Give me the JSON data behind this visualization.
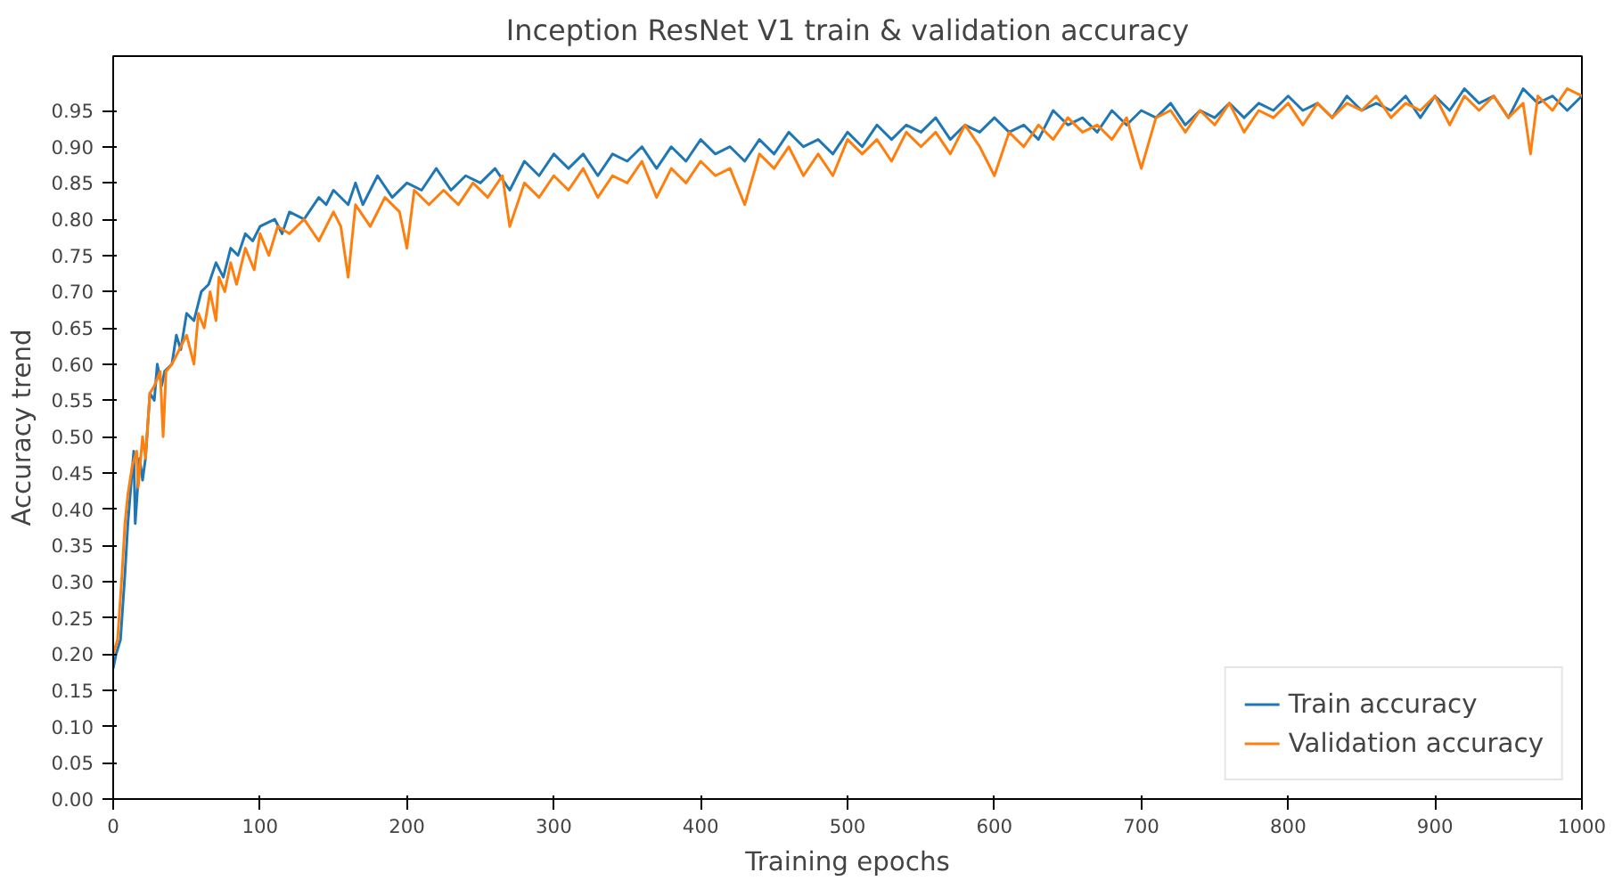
{
  "chart_data": {
    "type": "line",
    "title": "Inception ResNet V1 train & validation accuracy",
    "xlabel": "Training epochs",
    "ylabel": "Accuracy trend",
    "xlim": [
      0,
      1000
    ],
    "ylim": [
      0,
      1.025
    ],
    "xticks": [
      0,
      100,
      200,
      300,
      400,
      500,
      600,
      700,
      800,
      900,
      1000
    ],
    "yticks": [
      {
        "value": 0,
        "label": "0.00"
      },
      {
        "value": 0.05,
        "label": "0.05"
      },
      {
        "value": 0.1,
        "label": "0.10"
      },
      {
        "value": 0.15,
        "label": "0.15"
      },
      {
        "value": 0.2,
        "label": "0.20"
      },
      {
        "value": 0.25,
        "label": "0.25"
      },
      {
        "value": 0.3,
        "label": "0.30"
      },
      {
        "value": 0.35,
        "label": "0.35"
      },
      {
        "value": 0.4,
        "label": "0.40"
      },
      {
        "value": 0.45,
        "label": "0.45"
      },
      {
        "value": 0.5,
        "label": "0.50"
      },
      {
        "value": 0.55,
        "label": "0.55"
      },
      {
        "value": 0.6,
        "label": "0.60"
      },
      {
        "value": 0.65,
        "label": "0.65"
      },
      {
        "value": 0.7,
        "label": "0.70"
      },
      {
        "value": 0.75,
        "label": "0.75"
      },
      {
        "value": 0.8,
        "label": "0.80"
      },
      {
        "value": 0.85,
        "label": "0.85"
      },
      {
        "value": 0.9,
        "label": "0.90"
      },
      {
        "value": 0.95,
        "label": "0.95"
      }
    ],
    "grid": false,
    "legend": "bottom right",
    "series": [
      {
        "name": "Train accuracy",
        "color": "#1f77b4",
        "x": [
          0,
          2,
          5,
          8,
          10,
          12,
          14,
          15,
          18,
          20,
          22,
          25,
          28,
          30,
          33,
          35,
          40,
          43,
          46,
          50,
          55,
          60,
          65,
          70,
          75,
          80,
          85,
          90,
          95,
          100,
          110,
          115,
          120,
          130,
          140,
          145,
          150,
          160,
          165,
          170,
          180,
          190,
          200,
          210,
          220,
          230,
          240,
          250,
          260,
          270,
          280,
          290,
          300,
          310,
          320,
          330,
          340,
          350,
          360,
          370,
          380,
          390,
          400,
          410,
          420,
          430,
          440,
          450,
          460,
          470,
          480,
          490,
          500,
          510,
          520,
          530,
          540,
          550,
          560,
          570,
          580,
          590,
          600,
          610,
          620,
          630,
          640,
          650,
          660,
          670,
          680,
          690,
          700,
          710,
          720,
          730,
          740,
          750,
          760,
          770,
          780,
          790,
          800,
          810,
          820,
          830,
          840,
          850,
          860,
          870,
          880,
          890,
          900,
          910,
          920,
          930,
          940,
          950,
          960,
          970,
          980,
          990,
          1000
        ],
        "values": [
          0.18,
          0.2,
          0.22,
          0.31,
          0.38,
          0.43,
          0.48,
          0.38,
          0.47,
          0.44,
          0.47,
          0.56,
          0.55,
          0.6,
          0.57,
          0.59,
          0.6,
          0.64,
          0.62,
          0.67,
          0.66,
          0.7,
          0.71,
          0.74,
          0.72,
          0.76,
          0.75,
          0.78,
          0.77,
          0.79,
          0.8,
          0.78,
          0.81,
          0.8,
          0.83,
          0.82,
          0.84,
          0.82,
          0.85,
          0.82,
          0.86,
          0.83,
          0.85,
          0.84,
          0.87,
          0.84,
          0.86,
          0.85,
          0.87,
          0.84,
          0.88,
          0.86,
          0.89,
          0.87,
          0.89,
          0.86,
          0.89,
          0.88,
          0.9,
          0.87,
          0.9,
          0.88,
          0.91,
          0.89,
          0.9,
          0.88,
          0.91,
          0.89,
          0.92,
          0.9,
          0.91,
          0.89,
          0.92,
          0.9,
          0.93,
          0.91,
          0.93,
          0.92,
          0.94,
          0.91,
          0.93,
          0.92,
          0.94,
          0.92,
          0.93,
          0.91,
          0.95,
          0.93,
          0.94,
          0.92,
          0.95,
          0.93,
          0.95,
          0.94,
          0.96,
          0.93,
          0.95,
          0.94,
          0.96,
          0.94,
          0.96,
          0.95,
          0.97,
          0.95,
          0.96,
          0.94,
          0.97,
          0.95,
          0.96,
          0.95,
          0.97,
          0.94,
          0.97,
          0.95,
          0.98,
          0.96,
          0.97,
          0.94,
          0.98,
          0.96,
          0.97,
          0.95,
          0.97
        ]
      },
      {
        "name": "Validation accuracy",
        "color": "#ff7f0e",
        "x": [
          0,
          3,
          6,
          8,
          10,
          13,
          16,
          17,
          20,
          22,
          25,
          28,
          32,
          34,
          36,
          40,
          45,
          50,
          55,
          58,
          62,
          66,
          70,
          72,
          76,
          80,
          84,
          90,
          96,
          100,
          106,
          112,
          120,
          130,
          140,
          150,
          155,
          160,
          165,
          175,
          185,
          195,
          200,
          205,
          215,
          225,
          235,
          245,
          255,
          265,
          270,
          280,
          290,
          300,
          310,
          320,
          330,
          340,
          350,
          360,
          370,
          380,
          390,
          400,
          410,
          420,
          430,
          440,
          450,
          460,
          470,
          480,
          490,
          500,
          510,
          520,
          530,
          540,
          550,
          560,
          570,
          580,
          590,
          600,
          610,
          620,
          630,
          640,
          650,
          660,
          670,
          680,
          690,
          700,
          710,
          720,
          730,
          740,
          750,
          760,
          770,
          780,
          790,
          800,
          810,
          820,
          830,
          840,
          850,
          860,
          870,
          880,
          890,
          900,
          910,
          920,
          930,
          940,
          950,
          960,
          965,
          970,
          980,
          990,
          1000
        ],
        "values": [
          0.2,
          0.22,
          0.31,
          0.38,
          0.42,
          0.46,
          0.48,
          0.43,
          0.5,
          0.47,
          0.56,
          0.57,
          0.59,
          0.5,
          0.59,
          0.6,
          0.62,
          0.64,
          0.6,
          0.67,
          0.65,
          0.7,
          0.66,
          0.72,
          0.7,
          0.74,
          0.71,
          0.76,
          0.73,
          0.78,
          0.75,
          0.79,
          0.78,
          0.8,
          0.77,
          0.81,
          0.79,
          0.72,
          0.82,
          0.79,
          0.83,
          0.81,
          0.76,
          0.84,
          0.82,
          0.84,
          0.82,
          0.85,
          0.83,
          0.86,
          0.79,
          0.85,
          0.83,
          0.86,
          0.84,
          0.87,
          0.83,
          0.86,
          0.85,
          0.88,
          0.83,
          0.87,
          0.85,
          0.88,
          0.86,
          0.87,
          0.82,
          0.89,
          0.87,
          0.9,
          0.86,
          0.89,
          0.86,
          0.91,
          0.89,
          0.91,
          0.88,
          0.92,
          0.9,
          0.92,
          0.89,
          0.93,
          0.9,
          0.86,
          0.92,
          0.9,
          0.93,
          0.91,
          0.94,
          0.92,
          0.93,
          0.91,
          0.94,
          0.87,
          0.94,
          0.95,
          0.92,
          0.95,
          0.93,
          0.96,
          0.92,
          0.95,
          0.94,
          0.96,
          0.93,
          0.96,
          0.94,
          0.96,
          0.95,
          0.97,
          0.94,
          0.96,
          0.95,
          0.97,
          0.93,
          0.97,
          0.95,
          0.97,
          0.94,
          0.96,
          0.89,
          0.97,
          0.95,
          0.98,
          0.97
        ]
      }
    ]
  }
}
